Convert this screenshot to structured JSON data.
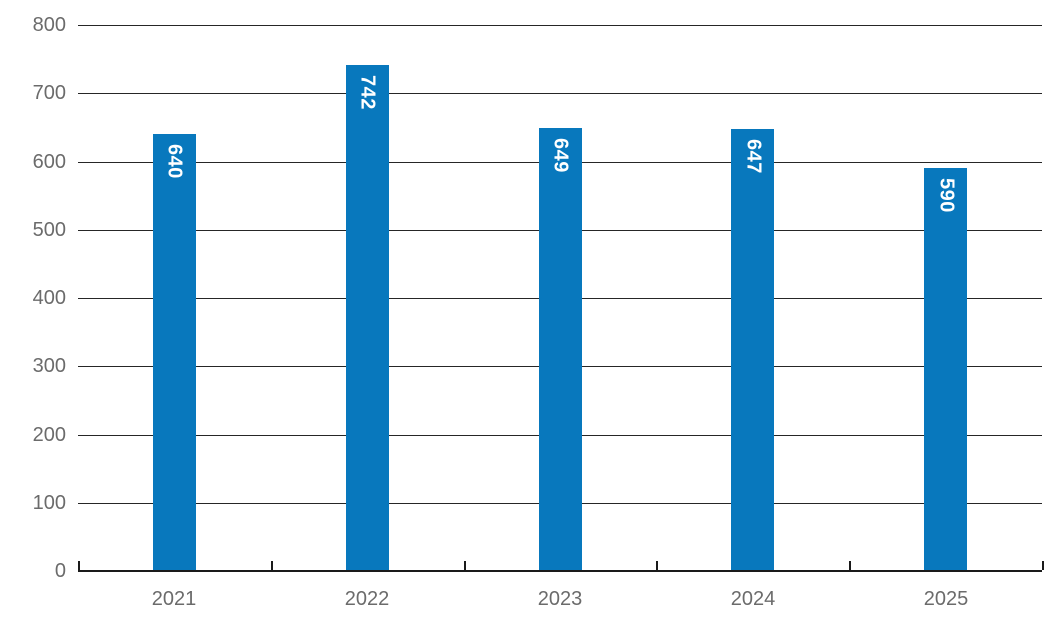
{
  "chart_data": {
    "type": "bar",
    "title": "",
    "subtitle": "",
    "xlabel": "",
    "ylabel": "",
    "categories": [
      "2021",
      "2022",
      "2023",
      "2024",
      "2025"
    ],
    "series": [
      {
        "name": "value",
        "values": [
          640,
          742,
          649,
          647,
          590
        ]
      }
    ],
    "value_labels": {
      "texts": [
        "640",
        "742",
        "649",
        "647",
        "590"
      ],
      "position": "inside-end",
      "rotation_deg": 90,
      "color": "#ffffff"
    },
    "y_axis": {
      "min": 0,
      "max": 800,
      "tick_step": 100,
      "tick_labels": [
        "0",
        "100",
        "200",
        "300",
        "400",
        "500",
        "600",
        "700",
        "800"
      ]
    },
    "grid": true,
    "legend": "none",
    "colors": {
      "bar": "#0878bd",
      "gridline": "#262626",
      "axis_line": "#1a1a1a",
      "tick_mark": "#1a1a1a",
      "tick_label": "#6b6b6b",
      "background": "#ffffff"
    }
  }
}
